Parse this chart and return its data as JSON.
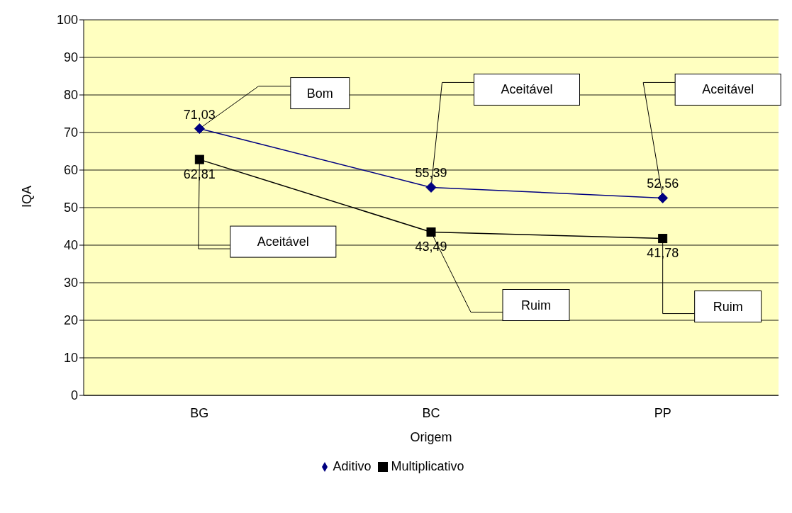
{
  "chart_data": {
    "type": "line",
    "xlabel": "Origem",
    "ylabel": "IQA",
    "categories": [
      "BG",
      "BC",
      "PP"
    ],
    "series": [
      {
        "name": "Aditivo",
        "color": "#000080",
        "marker": "diamond",
        "values": [
          71.03,
          55.39,
          52.56
        ],
        "value_labels": [
          "71,03",
          "55,39",
          "52,56"
        ]
      },
      {
        "name": "Multiplicativo",
        "color": "#000000",
        "marker": "square",
        "values": [
          62.81,
          43.49,
          41.78
        ],
        "value_labels": [
          "62,81",
          "43,49",
          "41,78"
        ]
      }
    ],
    "ylim": [
      0,
      100
    ],
    "yticks": [
      0,
      10,
      20,
      30,
      40,
      50,
      60,
      70,
      80,
      90,
      100
    ],
    "grid": "y",
    "legend": "bottom",
    "annotations": [
      {
        "text": "Bom",
        "x": "BG",
        "y": 71.03
      },
      "Aceitável",
      "Aceitável",
      "Aceitável",
      "Ruim",
      "Ruim"
    ]
  }
}
